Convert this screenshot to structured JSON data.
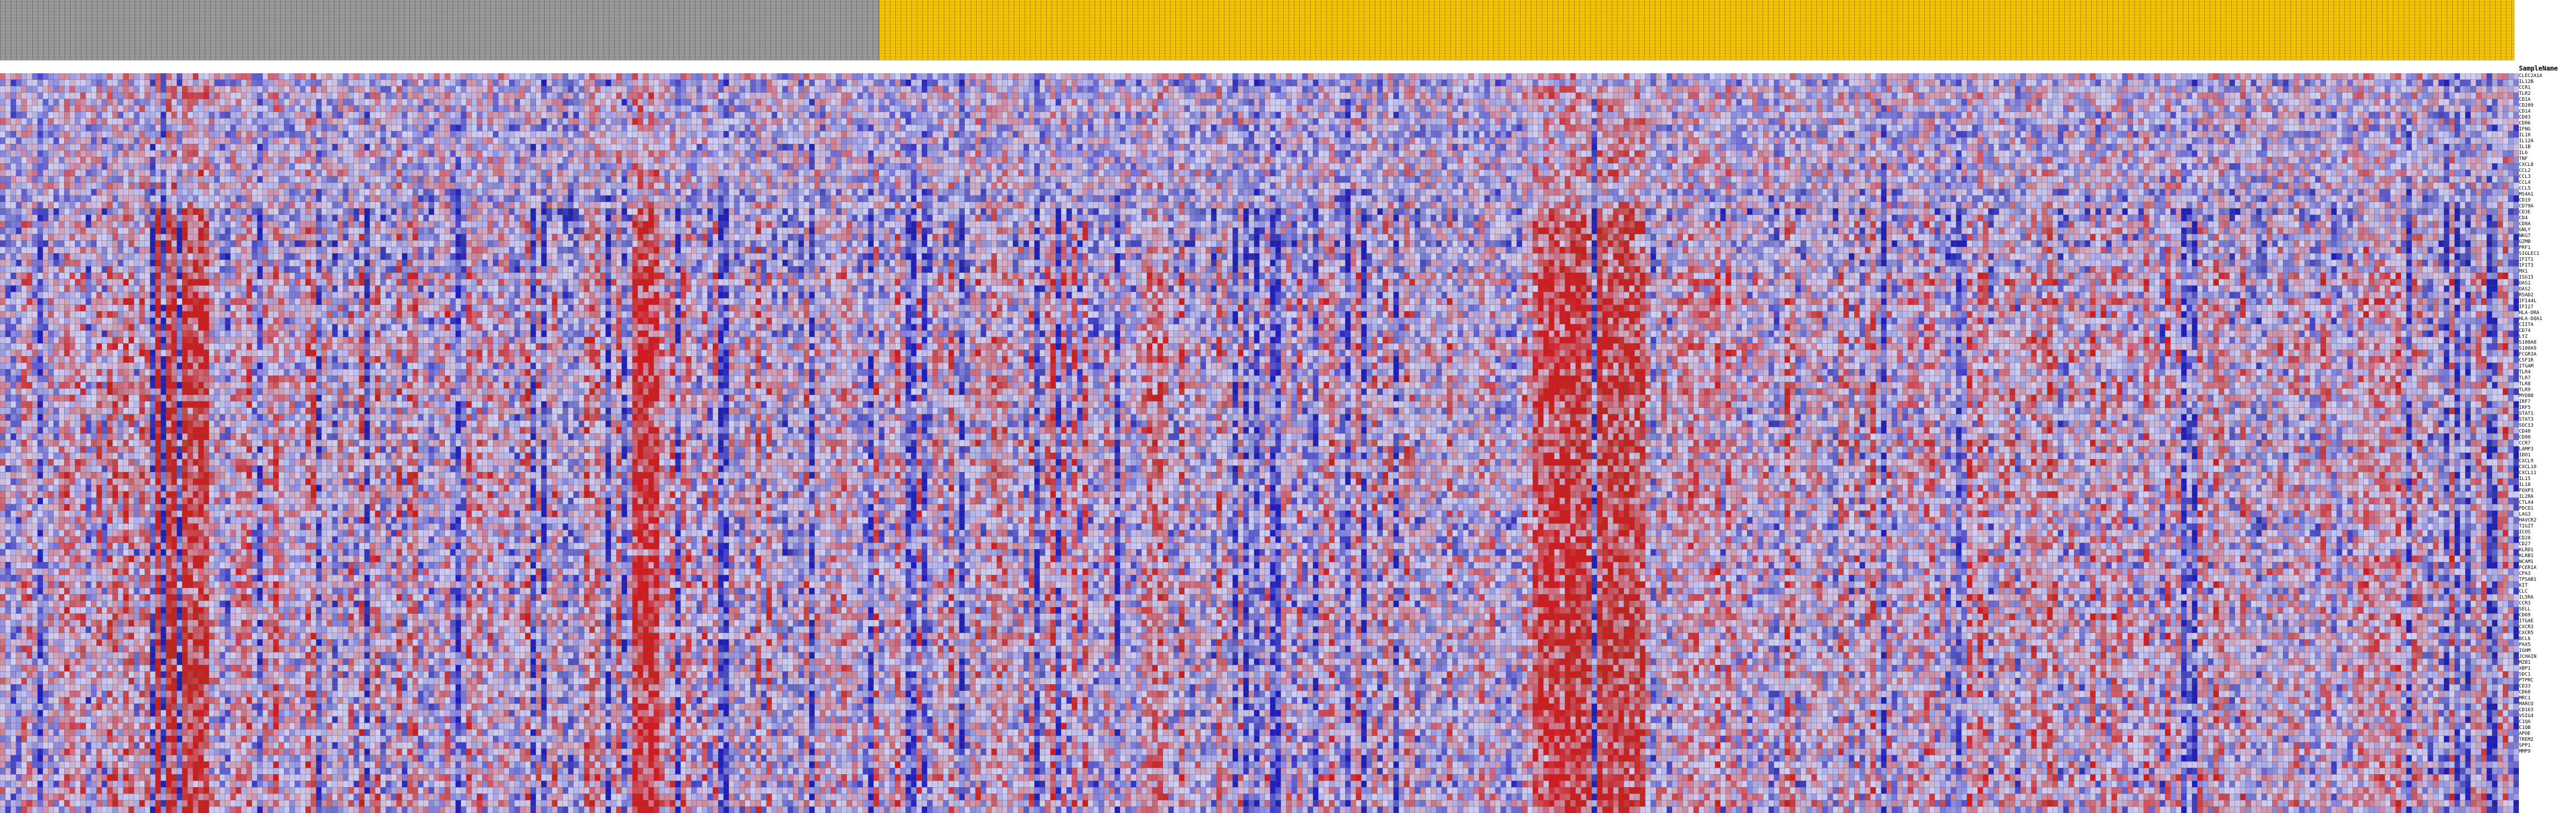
{
  "chart_data": {
    "type": "heatmap",
    "title": "",
    "xlabel": "",
    "ylabel": "",
    "row_header": "SampleName",
    "row_labels": [
      "CLEC2A1A",
      "IL12B",
      "CCR1",
      "TLR2",
      "CD1A",
      "CD209",
      "CD14",
      "CD83",
      "CD86",
      "IFNG",
      "IL10",
      "IL12A",
      "IL1B",
      "IL6",
      "TNF",
      "CXCL8",
      "CCL2",
      "CCL3",
      "CCL4",
      "CCL5",
      "MS4A1",
      "CD19",
      "CD79A",
      "CD3E",
      "CD4",
      "CD8A",
      "GNLY",
      "NKG7",
      "GZMB",
      "PRF1",
      "SIGLEC1",
      "IFIT1",
      "IFIT3",
      "MX1",
      "ISG15",
      "OAS1",
      "OAS2",
      "RSAD2",
      "IFI44L",
      "IFI27",
      "HLA-DRA",
      "HLA-DQA1",
      "CIITA",
      "CD74",
      "LYZ",
      "S100A8",
      "S100A9",
      "FCGR3A",
      "CSF1R",
      "ITGAM",
      "TLR4",
      "TLR7",
      "TLR8",
      "TLR9",
      "MYD88",
      "IRF7",
      "IRF5",
      "STAT1",
      "STAT3",
      "SOCS3",
      "CD40",
      "CD80",
      "CCR7",
      "LAMP3",
      "IDO1",
      "CXCL9",
      "CXCL10",
      "CXCL11",
      "IL15",
      "IL18",
      "FOXP3",
      "IL2RA",
      "CTLA4",
      "PDCD1",
      "LAG3",
      "HAVCR2",
      "TIGIT",
      "ICOS",
      "CD28",
      "CD27",
      "KLRD1",
      "KLRB1",
      "NCAM1",
      "FCER1A",
      "CPA3",
      "TPSAB1",
      "KIT",
      "CLC",
      "IL5RA",
      "CCR3",
      "SELL",
      "CD69",
      "ITGAE",
      "CXCR3",
      "CXCR5",
      "BCL6",
      "PAX5",
      "IGHM",
      "JCHAIN",
      "MZB1",
      "XBP1",
      "SDC1",
      "PTPRC",
      "CD33",
      "CD68",
      "MRC1",
      "MARCO",
      "CD163",
      "VSIG4",
      "C1QA",
      "C1QB",
      "APOE",
      "TREM2",
      "SPP1",
      "MMP9"
    ],
    "row_count": 115,
    "column_count": 470,
    "color_scale": {
      "low": "#2020b8",
      "mid": "#d0d0f4",
      "high": "#cc1e1e",
      "range": [
        -2,
        2
      ]
    },
    "column_groups": [
      {
        "color": "#9a9a9a",
        "start": 0,
        "end": 164
      },
      {
        "color": "#f5c400",
        "start": 164,
        "end": 470
      }
    ],
    "grid": true,
    "legend": "none"
  }
}
